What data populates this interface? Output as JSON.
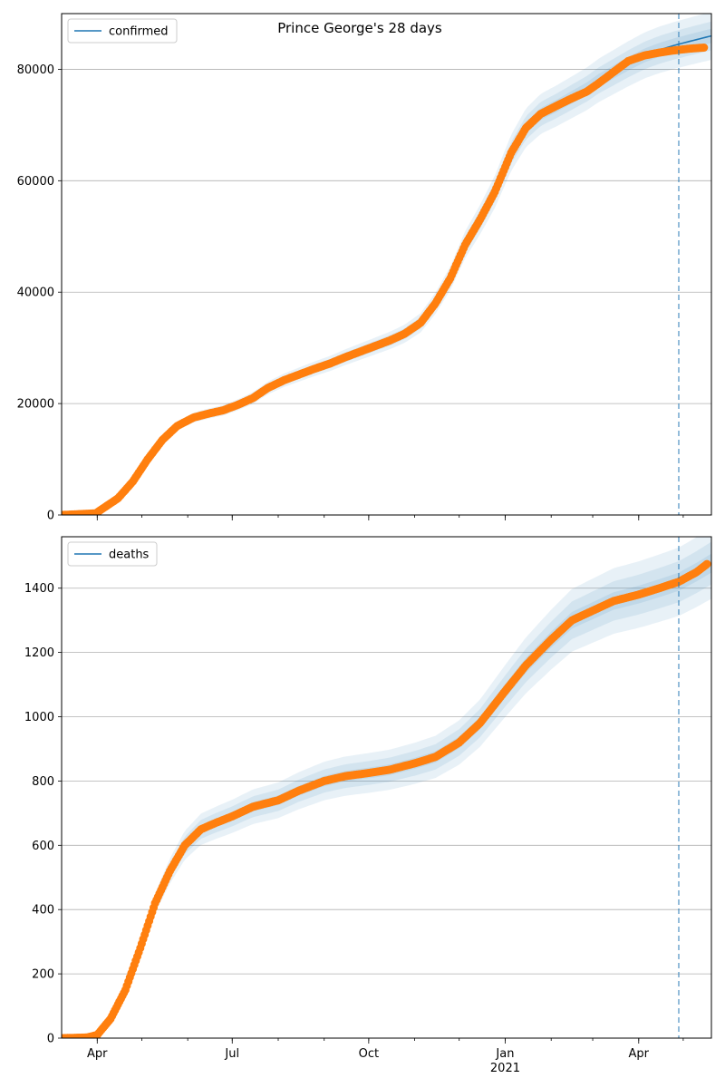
{
  "title": "Prince George's 28 days",
  "colors": {
    "model": "#1f77b4",
    "observed": "#ff7f0e",
    "band": "#1f77b4",
    "forecast_line": "#1f77b4"
  },
  "x_axis": {
    "start": "2020-03-08",
    "end": "2021-05-20",
    "forecast_date": "2021-04-28",
    "tick_labels": [
      {
        "date": "2020-04-01",
        "label": "Apr"
      },
      {
        "date": "2020-07-01",
        "label": "Jul"
      },
      {
        "date": "2020-10-01",
        "label": "Oct"
      },
      {
        "date": "2021-01-01",
        "label": "Jan"
      },
      {
        "date": "2021-04-01",
        "label": "Apr"
      }
    ],
    "year_label": {
      "date": "2021-01-01",
      "label": "2021"
    }
  },
  "chart_data": [
    {
      "type": "line",
      "legend": "confirmed",
      "legend_position": "top-left",
      "grid": "y",
      "ylim": [
        0,
        90000
      ],
      "yticks": [
        0,
        20000,
        40000,
        60000,
        80000
      ],
      "observed": {
        "x": [
          "2020-03-08",
          "2020-03-31",
          "2020-04-15",
          "2020-04-25",
          "2020-05-05",
          "2020-05-15",
          "2020-05-25",
          "2020-06-05",
          "2020-06-15",
          "2020-06-25",
          "2020-07-05",
          "2020-07-15",
          "2020-07-25",
          "2020-08-05",
          "2020-08-15",
          "2020-08-25",
          "2020-09-05",
          "2020-09-15",
          "2020-09-25",
          "2020-10-05",
          "2020-10-15",
          "2020-10-25",
          "2020-11-05",
          "2020-11-15",
          "2020-11-25",
          "2020-12-05",
          "2020-12-15",
          "2020-12-25",
          "2021-01-05",
          "2021-01-15",
          "2021-01-25",
          "2021-02-05",
          "2021-02-15",
          "2021-02-25",
          "2021-03-05",
          "2021-03-15",
          "2021-03-25",
          "2021-04-05",
          "2021-04-15",
          "2021-04-25",
          "2021-05-05",
          "2021-05-15"
        ],
        "y": [
          0,
          300,
          3000,
          6000,
          10000,
          13500,
          16000,
          17500,
          18200,
          18800,
          19800,
          21000,
          22800,
          24200,
          25200,
          26200,
          27200,
          28300,
          29300,
          30300,
          31300,
          32500,
          34500,
          38000,
          42500,
          48500,
          53000,
          58000,
          65000,
          69500,
          72000,
          73500,
          74800,
          76000,
          77500,
          79500,
          81500,
          82500,
          83000,
          83400,
          83700,
          83900
        ]
      },
      "model": {
        "x": [
          "2020-03-08",
          "2020-03-31",
          "2020-04-15",
          "2020-04-25",
          "2020-05-05",
          "2020-05-15",
          "2020-05-25",
          "2020-06-05",
          "2020-06-15",
          "2020-06-25",
          "2020-07-05",
          "2020-07-15",
          "2020-07-25",
          "2020-08-05",
          "2020-08-15",
          "2020-08-25",
          "2020-09-05",
          "2020-09-15",
          "2020-09-25",
          "2020-10-05",
          "2020-10-15",
          "2020-10-25",
          "2020-11-05",
          "2020-11-15",
          "2020-11-25",
          "2020-12-05",
          "2020-12-15",
          "2020-12-25",
          "2021-01-05",
          "2021-01-15",
          "2021-01-25",
          "2021-02-05",
          "2021-02-15",
          "2021-02-25",
          "2021-03-05",
          "2021-03-15",
          "2021-03-25",
          "2021-04-05",
          "2021-04-15",
          "2021-04-25",
          "2021-05-05",
          "2021-05-20"
        ],
        "y": [
          0,
          300,
          3000,
          6000,
          10000,
          13500,
          16000,
          17500,
          18200,
          18800,
          19800,
          21000,
          22800,
          24200,
          25200,
          26200,
          27200,
          28300,
          29300,
          30300,
          31300,
          32500,
          34500,
          38000,
          42500,
          48500,
          53000,
          58000,
          65000,
          69500,
          72000,
          73500,
          75000,
          76500,
          78000,
          79500,
          81000,
          82500,
          83500,
          84300,
          85000,
          86000
        ]
      },
      "band_spread": [
        0.015,
        0.03,
        0.05
      ]
    },
    {
      "type": "line",
      "legend": "deaths",
      "legend_position": "top-left",
      "grid": "y",
      "ylim": [
        0,
        1560
      ],
      "yticks": [
        0,
        200,
        400,
        600,
        800,
        1000,
        1200,
        1400
      ],
      "observed": {
        "x": [
          "2020-03-08",
          "2020-03-25",
          "2020-04-01",
          "2020-04-10",
          "2020-04-20",
          "2020-04-30",
          "2020-05-10",
          "2020-05-20",
          "2020-05-30",
          "2020-06-10",
          "2020-06-20",
          "2020-07-01",
          "2020-07-15",
          "2020-08-01",
          "2020-08-15",
          "2020-09-01",
          "2020-09-15",
          "2020-10-01",
          "2020-10-15",
          "2020-11-01",
          "2020-11-15",
          "2020-12-01",
          "2020-12-15",
          "2021-01-01",
          "2021-01-15",
          "2021-02-01",
          "2021-02-15",
          "2021-03-01",
          "2021-03-15",
          "2021-04-01",
          "2021-04-15",
          "2021-04-28",
          "2021-05-10",
          "2021-05-17"
        ],
        "y": [
          0,
          2,
          10,
          60,
          150,
          280,
          420,
          520,
          600,
          650,
          670,
          690,
          720,
          740,
          770,
          800,
          815,
          825,
          835,
          855,
          875,
          920,
          980,
          1080,
          1160,
          1240,
          1300,
          1330,
          1360,
          1380,
          1400,
          1420,
          1450,
          1475
        ]
      },
      "model": {
        "x": [
          "2020-03-08",
          "2020-03-25",
          "2020-04-01",
          "2020-04-10",
          "2020-04-20",
          "2020-04-30",
          "2020-05-10",
          "2020-05-20",
          "2020-05-30",
          "2020-06-10",
          "2020-06-20",
          "2020-07-01",
          "2020-07-15",
          "2020-08-01",
          "2020-08-15",
          "2020-09-01",
          "2020-09-15",
          "2020-10-01",
          "2020-10-15",
          "2020-11-01",
          "2020-11-15",
          "2020-12-01",
          "2020-12-15",
          "2021-01-01",
          "2021-01-15",
          "2021-02-01",
          "2021-02-15",
          "2021-03-01",
          "2021-03-15",
          "2021-04-01",
          "2021-04-15",
          "2021-04-28",
          "2021-05-10",
          "2021-05-20"
        ],
        "y": [
          0,
          2,
          10,
          60,
          150,
          280,
          420,
          520,
          600,
          650,
          670,
          690,
          720,
          740,
          770,
          800,
          815,
          825,
          835,
          855,
          875,
          920,
          980,
          1080,
          1160,
          1240,
          1300,
          1330,
          1360,
          1380,
          1400,
          1420,
          1450,
          1478
        ]
      },
      "band_spread": [
        0.02,
        0.045,
        0.075
      ]
    }
  ]
}
